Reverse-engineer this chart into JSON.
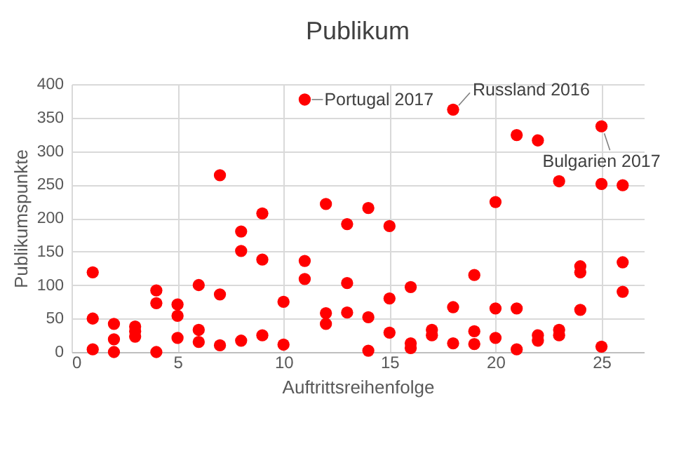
{
  "chart_data": {
    "type": "scatter",
    "title": "Publikum",
    "xlabel": "Auftrittsreihenfolge",
    "ylabel": "Publikumspunkte",
    "x": [
      1,
      1,
      1,
      2,
      2,
      2,
      3,
      3,
      3,
      4,
      4,
      4,
      5,
      5,
      5,
      6,
      6,
      6,
      7,
      7,
      7,
      8,
      8,
      8,
      9,
      9,
      9,
      10,
      10,
      11,
      11,
      11,
      12,
      12,
      12,
      13,
      13,
      13,
      14,
      14,
      14,
      15,
      15,
      15,
      16,
      16,
      16,
      17,
      17,
      18,
      18,
      18,
      19,
      19,
      19,
      20,
      20,
      20,
      21,
      21,
      21,
      22,
      22,
      22,
      23,
      23,
      23,
      24,
      24,
      24,
      25,
      25,
      25,
      26,
      26,
      26
    ],
    "series": [
      {
        "color": "#ff0000",
        "values": [
          119,
          50,
          4,
          42,
          19,
          0,
          38,
          31,
          23,
          92,
          73,
          0,
          71,
          54,
          21,
          100,
          33,
          15,
          264,
          86,
          10,
          180,
          151,
          17,
          207,
          138,
          25,
          75,
          11,
          377,
          136,
          109,
          221,
          58,
          42,
          191,
          103,
          59,
          215,
          52,
          2,
          188,
          80,
          29,
          97,
          13,
          6,
          33,
          25,
          362,
          67,
          13,
          115,
          31,
          12,
          224,
          65,
          21,
          324,
          65,
          4,
          316,
          25,
          17,
          255,
          33,
          25,
          128,
          119,
          63,
          337,
          251,
          8,
          249,
          134,
          90
        ]
      }
    ],
    "xlim": [
      0,
      27
    ],
    "xticks": [
      0,
      5,
      10,
      15,
      20,
      25
    ],
    "ylim": [
      0,
      400
    ],
    "yticks": [
      0,
      50,
      100,
      150,
      200,
      250,
      300,
      350,
      400
    ],
    "grid": true,
    "marker": "circle",
    "annotations": [
      {
        "text": "Portugal 2017",
        "x": 11,
        "y": 377
      },
      {
        "text": "Russland 2016",
        "x": 18,
        "y": 362
      },
      {
        "text": "Bulgarien 2017",
        "x": 25,
        "y": 337
      }
    ]
  }
}
